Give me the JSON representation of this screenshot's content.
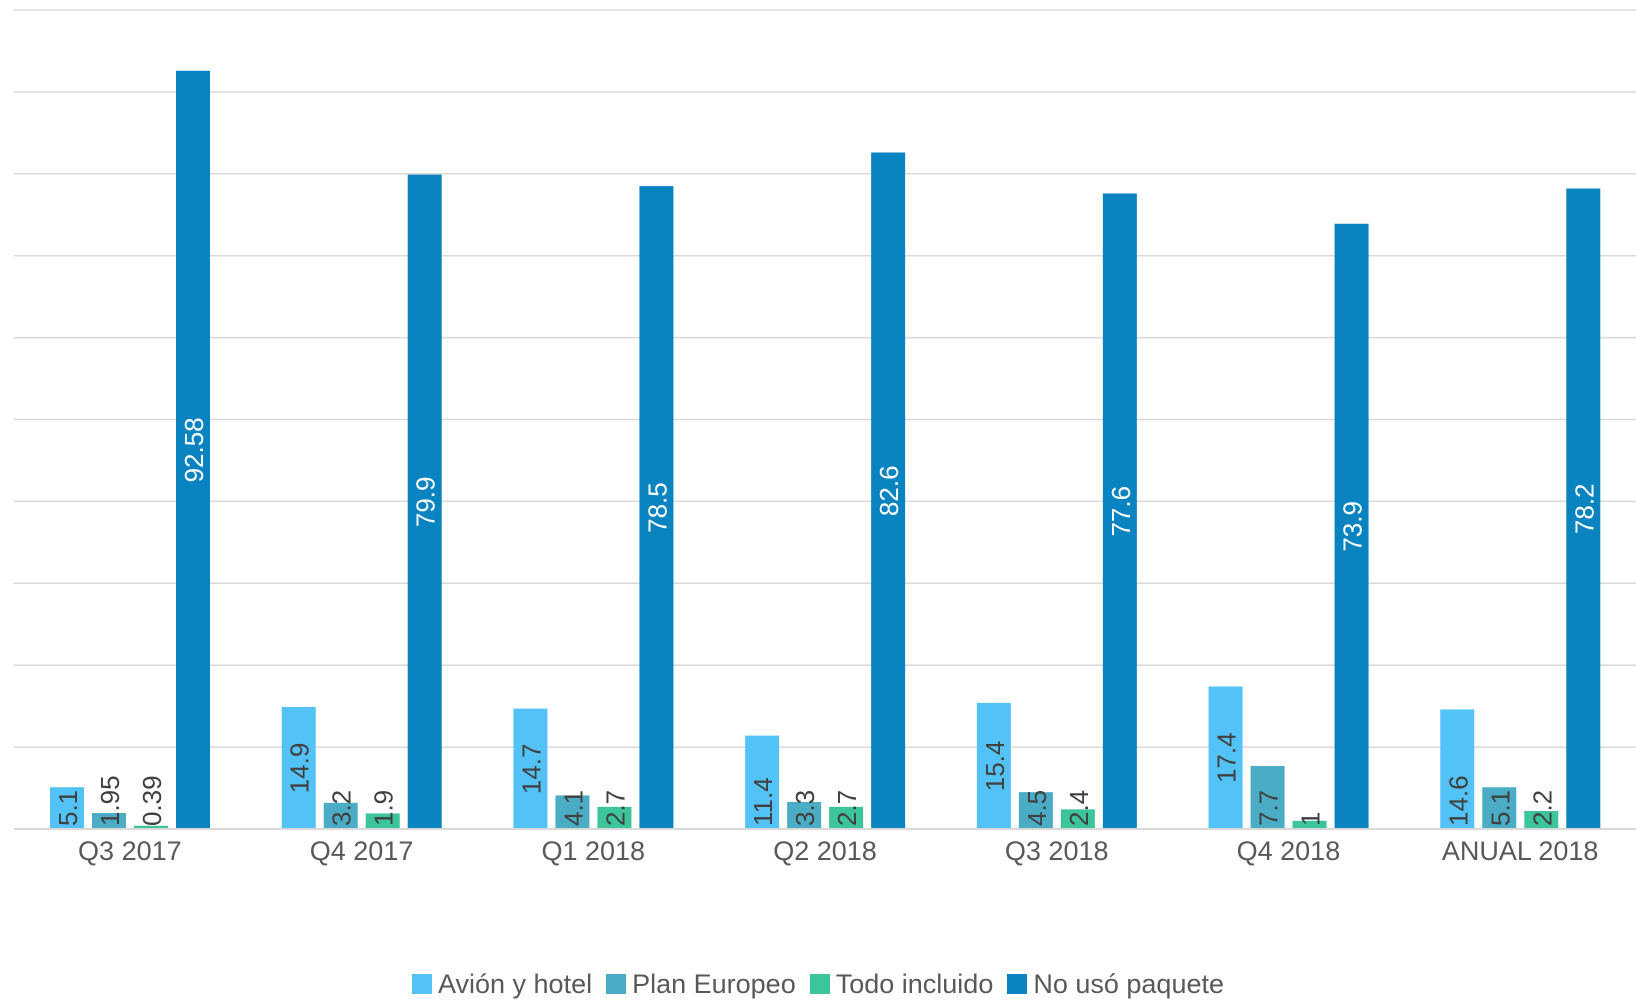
{
  "chart_data": {
    "type": "bar",
    "categories": [
      "Q3 2017",
      "Q4 2017",
      "Q1 2018",
      "Q2 2018",
      "Q3 2018",
      "Q4 2018",
      "ANUAL 2018"
    ],
    "series": [
      {
        "name": "Avión y hotel",
        "color": "#53C2F7",
        "values": [
          5.1,
          14.9,
          14.7,
          11.4,
          15.4,
          17.4,
          14.6
        ],
        "labels": [
          "5.1",
          "14.9",
          "14.7",
          "11.4",
          "15.4",
          "17.4",
          "14.6"
        ]
      },
      {
        "name": "Plan Europeo",
        "color": "#4BACC6",
        "values": [
          1.95,
          3.2,
          4.1,
          3.3,
          4.5,
          7.7,
          5.1
        ],
        "labels": [
          "1.95",
          "3.2",
          "4.1",
          "3.3",
          "4.5",
          "7.7",
          "5.1"
        ]
      },
      {
        "name": "Todo incluido",
        "color": "#3CC49B",
        "values": [
          0.39,
          1.9,
          2.7,
          2.7,
          2.4,
          1,
          2.2
        ],
        "labels": [
          "0.39",
          "1.9",
          "2.7",
          "2.7",
          "2.4",
          "1",
          "2.2"
        ]
      },
      {
        "name": "No usó paquete",
        "color": "#0A84C1",
        "values": [
          92.58,
          79.9,
          78.5,
          82.6,
          77.6,
          73.9,
          78.2
        ],
        "labels": [
          "92.58",
          "79.9",
          "78.5",
          "82.6",
          "77.6",
          "73.9",
          "78.2"
        ]
      }
    ],
    "ylim": [
      0,
      100
    ],
    "gridlines": true,
    "gridline_step": 10,
    "legend_position": "bottom"
  }
}
